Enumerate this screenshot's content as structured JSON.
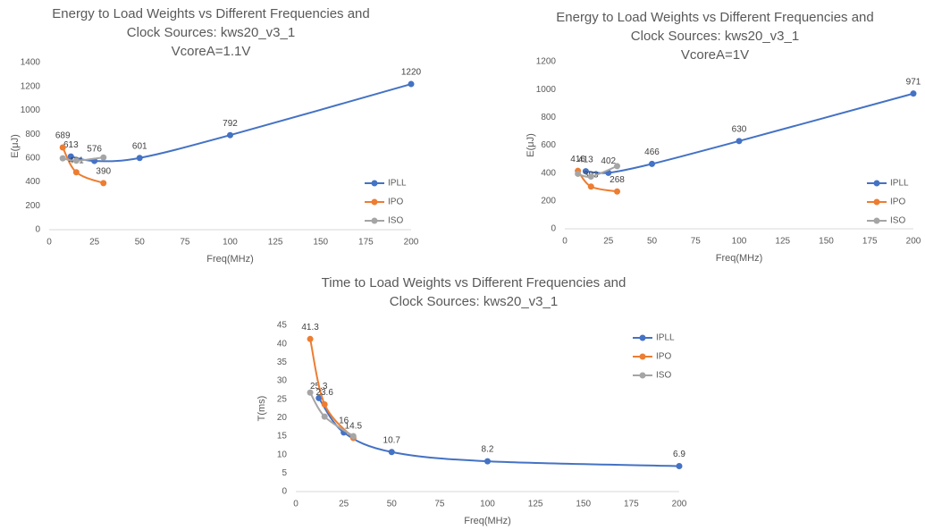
{
  "chart_data": [
    {
      "type": "line",
      "title": [
        "Energy to Load Weights vs Different Frequencies and",
        "Clock Sources: kws20_v3_1",
        "VcoreA=1.1V"
      ],
      "xlabel": "Freq(MHz)",
      "ylabel": "E(μJ)",
      "xlim": [
        0,
        200
      ],
      "xticks": [
        0,
        25,
        50,
        75,
        100,
        125,
        150,
        175,
        200
      ],
      "ylim": [
        0,
        1400
      ],
      "yticks": [
        0,
        200,
        400,
        600,
        800,
        1000,
        1200,
        1400
      ],
      "grid": false,
      "legend": "right",
      "smooth": true,
      "series": [
        {
          "name": "IPLL",
          "color": "#4472c4",
          "data_labels": true,
          "x": [
            12,
            25,
            50,
            100,
            200
          ],
          "values": [
            613,
            576,
            601,
            792,
            1220
          ]
        },
        {
          "name": "IPO",
          "color": "#ed7d31",
          "data_labels": true,
          "x": [
            7.5,
            15,
            30
          ],
          "values": [
            689,
            481,
            390
          ]
        },
        {
          "name": "ISO",
          "color": "#a5a5a5",
          "data_labels": false,
          "x": [
            7.5,
            15,
            30
          ],
          "values": [
            598,
            578,
            605
          ]
        }
      ]
    },
    {
      "type": "line",
      "title": [
        "Energy to Load Weights vs Different Frequencies and",
        "Clock Sources: kws20_v3_1",
        "VcoreA=1V"
      ],
      "xlabel": "Freq(MHz)",
      "ylabel": "E(μJ)",
      "xlim": [
        0,
        200
      ],
      "xticks": [
        0,
        25,
        50,
        75,
        100,
        125,
        150,
        175,
        200
      ],
      "ylim": [
        0,
        1200
      ],
      "yticks": [
        0,
        200,
        400,
        600,
        800,
        1000,
        1200
      ],
      "grid": false,
      "legend": "right",
      "smooth": true,
      "series": [
        {
          "name": "IPLL",
          "color": "#4472c4",
          "data_labels": true,
          "x": [
            12,
            25,
            50,
            100,
            200
          ],
          "values": [
            413,
            402,
            466,
            630,
            971
          ]
        },
        {
          "name": "IPO",
          "color": "#ed7d31",
          "data_labels": true,
          "x": [
            7.5,
            15,
            30
          ],
          "values": [
            416,
            303,
            268
          ]
        },
        {
          "name": "ISO",
          "color": "#a5a5a5",
          "data_labels": false,
          "x": [
            7.5,
            15,
            30
          ],
          "values": [
            395,
            375,
            450
          ]
        }
      ]
    },
    {
      "type": "line",
      "title": [
        "Time to Load Weights vs Different Frequencies and",
        "Clock Sources: kws20_v3_1"
      ],
      "xlabel": "Freq(MHz)",
      "ylabel": "T(ms)",
      "xlim": [
        0,
        200
      ],
      "xticks": [
        0,
        25,
        50,
        75,
        100,
        125,
        150,
        175,
        200
      ],
      "ylim": [
        0,
        45
      ],
      "yticks": [
        0,
        5,
        10,
        15,
        20,
        25,
        30,
        35,
        40,
        45
      ],
      "grid": false,
      "legend": "right",
      "smooth": true,
      "series": [
        {
          "name": "IPLL",
          "color": "#4472c4",
          "data_labels": true,
          "x": [
            12,
            25,
            50,
            100,
            200
          ],
          "values": [
            25.3,
            16,
            10.7,
            8.2,
            6.9
          ]
        },
        {
          "name": "IPO",
          "color": "#ed7d31",
          "data_labels": true,
          "x": [
            7.5,
            15,
            30
          ],
          "values": [
            41.3,
            23.6,
            14.5
          ]
        },
        {
          "name": "ISO",
          "color": "#a5a5a5",
          "data_labels": false,
          "x": [
            7.5,
            15,
            30
          ],
          "values": [
            26.8,
            20.3,
            15
          ]
        }
      ]
    }
  ]
}
